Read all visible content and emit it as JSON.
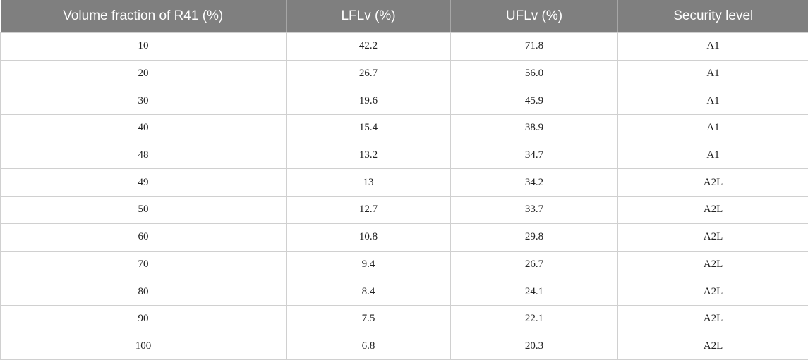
{
  "table": {
    "headers": [
      "Volume fraction of R41 (%)",
      "LFLv (%)",
      "UFLv (%)",
      "Security level"
    ],
    "rows": [
      [
        "10",
        "42.2",
        "71.8",
        "A1"
      ],
      [
        "20",
        "26.7",
        "56.0",
        "A1"
      ],
      [
        "30",
        "19.6",
        "45.9",
        "A1"
      ],
      [
        "40",
        "15.4",
        "38.9",
        "A1"
      ],
      [
        "48",
        "13.2",
        "34.7",
        "A1"
      ],
      [
        "49",
        "13",
        "34.2",
        "A2L"
      ],
      [
        "50",
        "12.7",
        "33.7",
        "A2L"
      ],
      [
        "60",
        "10.8",
        "29.8",
        "A2L"
      ],
      [
        "70",
        "9.4",
        "26.7",
        "A2L"
      ],
      [
        "80",
        "8.4",
        "24.1",
        "A2L"
      ],
      [
        "90",
        "7.5",
        "22.1",
        "A2L"
      ],
      [
        "100",
        "6.8",
        "20.3",
        "A2L"
      ]
    ]
  },
  "colors": {
    "header_bg": "#7f7f7f",
    "header_text": "#ffffff",
    "grid_line": "#d0d0d0"
  }
}
